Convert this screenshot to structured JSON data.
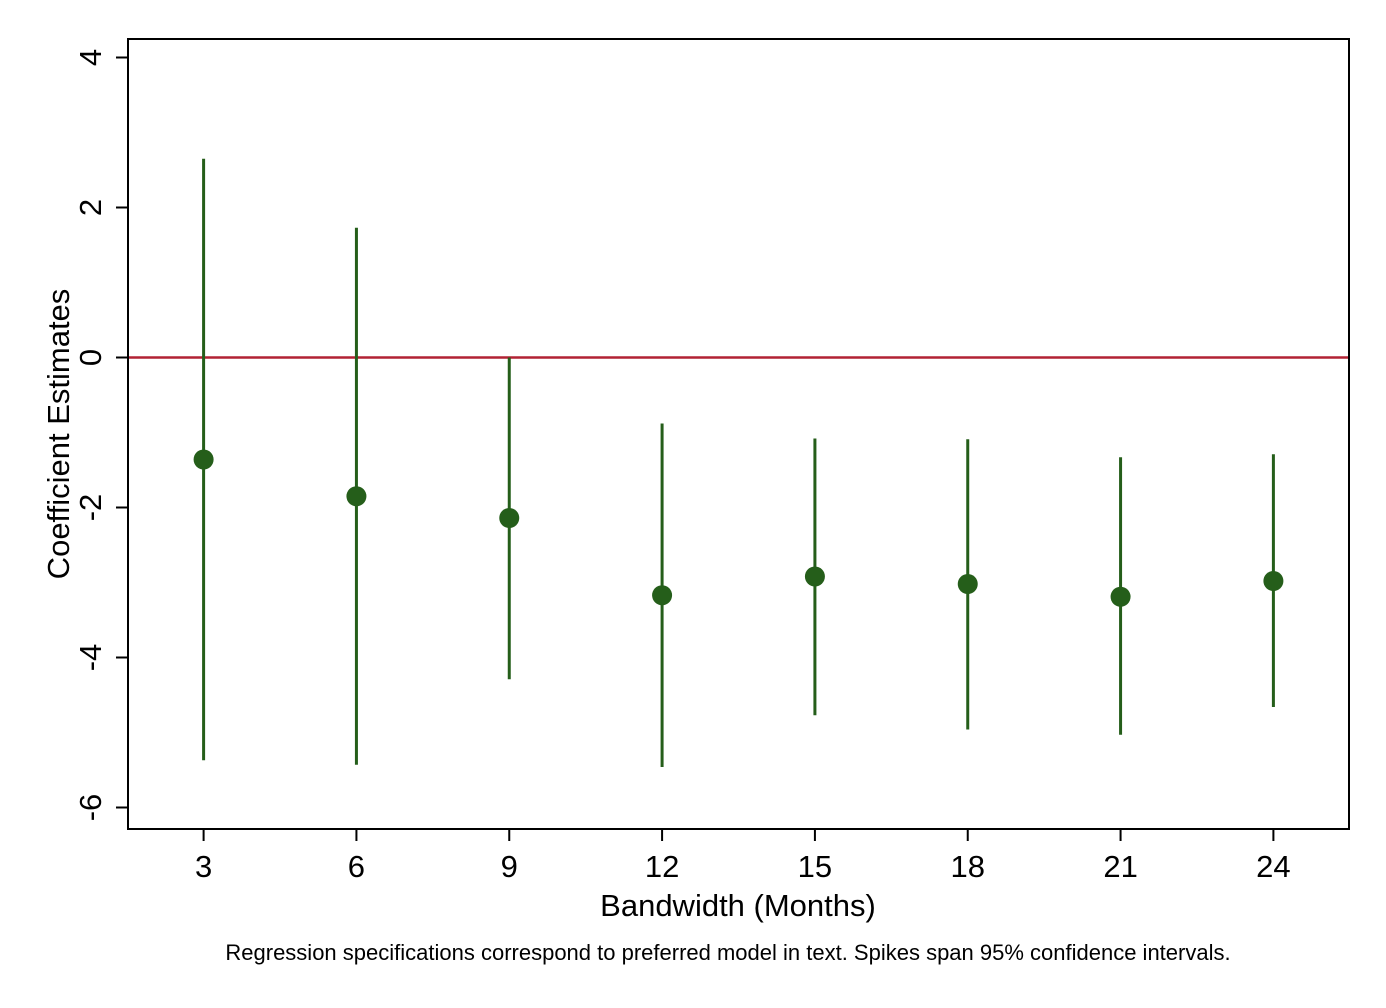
{
  "chart_data": {
    "type": "scatter",
    "subtype": "coefficient-plot-with-confidence-spikes",
    "xlabel": "Bandwidth (Months)",
    "ylabel": "Coefficient Estimates",
    "note": "Regression specifications correspond to preferred model in text. Spikes span 95% confidence intervals.",
    "x_ticks": [
      3,
      6,
      9,
      12,
      15,
      18,
      21,
      24
    ],
    "y_ticks": [
      -6,
      -4,
      -2,
      0,
      2,
      4
    ],
    "xlim": [
      1,
      25
    ],
    "ylim": [
      -6.3,
      4.3
    ],
    "grid": false,
    "reference_line": {
      "y": 0,
      "color": "#b22234"
    },
    "series": [
      {
        "x": [
          3,
          6,
          9,
          12,
          15,
          18,
          21,
          24
        ],
        "estimate": [
          -1.36,
          -1.85,
          -2.14,
          -3.17,
          -2.92,
          -3.02,
          -3.19,
          -2.98
        ],
        "ci_low": [
          -5.37,
          -5.43,
          -4.29,
          -5.46,
          -4.77,
          -4.96,
          -5.03,
          -4.66
        ],
        "ci_high": [
          2.65,
          1.73,
          0.0,
          -0.88,
          -1.08,
          -1.09,
          -1.33,
          -1.29
        ],
        "color": "#255e1a"
      }
    ]
  }
}
